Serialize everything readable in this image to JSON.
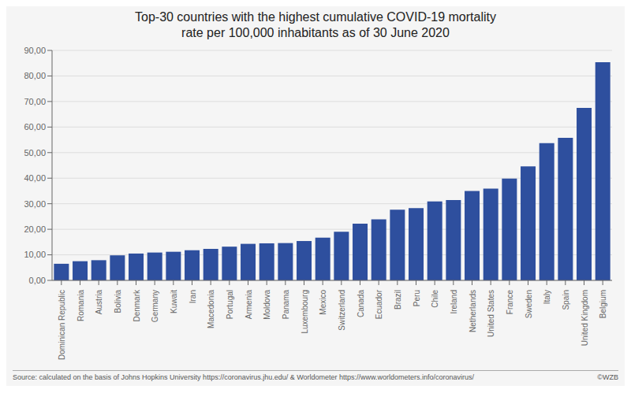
{
  "chart_data": {
    "type": "bar",
    "title": "Top-30 countries with the highest cumulative COVID-19 mortality\nrate per 100,000 inhabitants as of 30 June 2020",
    "categories": [
      "Dominican Republic",
      "Romania",
      "Austria",
      "Bolivia",
      "Denmark",
      "Germany",
      "Kuwait",
      "Iran",
      "Macedonia",
      "Portugal",
      "Armenia",
      "Moldova",
      "Panama",
      "Luxembourg",
      "Mexico",
      "Switzerland",
      "Canada",
      "Ecuador",
      "Brazil",
      "Peru",
      "Chile",
      "Ireland",
      "Netherlands",
      "United States",
      "France",
      "Sweden",
      "Italy",
      "Spain",
      "United Kingdom",
      "Belgium"
    ],
    "values": [
      6.5,
      7.5,
      7.9,
      9.8,
      10.5,
      10.9,
      11.2,
      11.8,
      12.3,
      13.2,
      14.3,
      14.5,
      14.6,
      15.4,
      16.7,
      19.0,
      22.2,
      23.9,
      27.7,
      28.3,
      30.9,
      31.4,
      35.0,
      35.9,
      39.8,
      44.6,
      53.7,
      55.8,
      67.5,
      85.4
    ],
    "color": "#2e4f9e",
    "ylim": [
      0,
      90
    ],
    "yticks": [
      {
        "value": 0,
        "label": "0,00"
      },
      {
        "value": 10,
        "label": "10,00"
      },
      {
        "value": 20,
        "label": "20,00"
      },
      {
        "value": 30,
        "label": "30,00"
      },
      {
        "value": 40,
        "label": "40,00"
      },
      {
        "value": 50,
        "label": "50,00"
      },
      {
        "value": 60,
        "label": "60,00"
      },
      {
        "value": 70,
        "label": "70,00"
      },
      {
        "value": 80,
        "label": "80,00"
      },
      {
        "value": 90,
        "label": "90,00"
      }
    ],
    "grid": true,
    "annotations": [
      "Source: calculated on the basis of Johns Hopkins University https://coronavirus.jhu.edu/ & Worldometer https://www.worldometers.info/coronavirus/",
      "©WZB"
    ]
  }
}
